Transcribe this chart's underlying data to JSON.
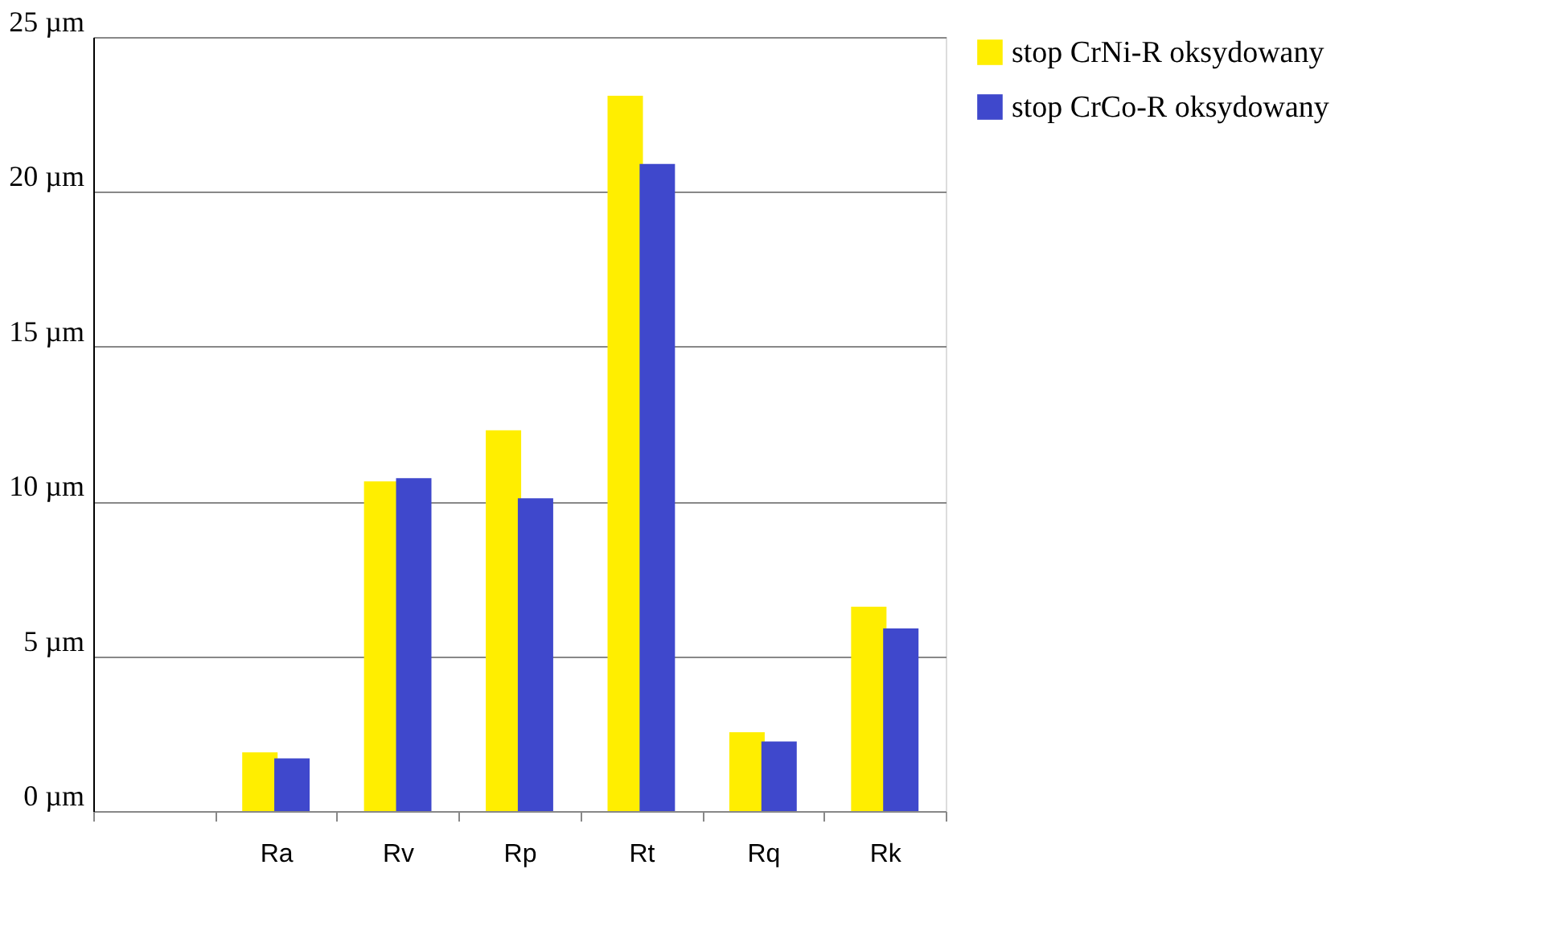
{
  "chart_data": {
    "type": "bar",
    "categories": [
      null,
      "Ra",
      "Rv",
      "Rp",
      "Rt",
      "Rq",
      "Rk"
    ],
    "series": [
      {
        "name": "stop CrNi-R oksydowany",
        "color": "#ffee00",
        "values": [
          null,
          1.9,
          10.65,
          12.3,
          23.1,
          2.55,
          6.6
        ]
      },
      {
        "name": "stop CrCo-R oksydowany",
        "color": "#3f48cc",
        "values": [
          null,
          1.7,
          10.75,
          10.1,
          20.9,
          2.25,
          5.9
        ]
      }
    ],
    "ylim": [
      0,
      25
    ],
    "yticks": [
      {
        "value": 0,
        "label": "0 µm"
      },
      {
        "value": 5,
        "label": "5 µm"
      },
      {
        "value": 10,
        "label": "10 µm"
      },
      {
        "value": 15,
        "label": "15 µm"
      },
      {
        "value": 20,
        "label": "20 µm"
      },
      {
        "value": 25,
        "label": "25 µm"
      }
    ],
    "grid": "y",
    "legend": "right"
  }
}
